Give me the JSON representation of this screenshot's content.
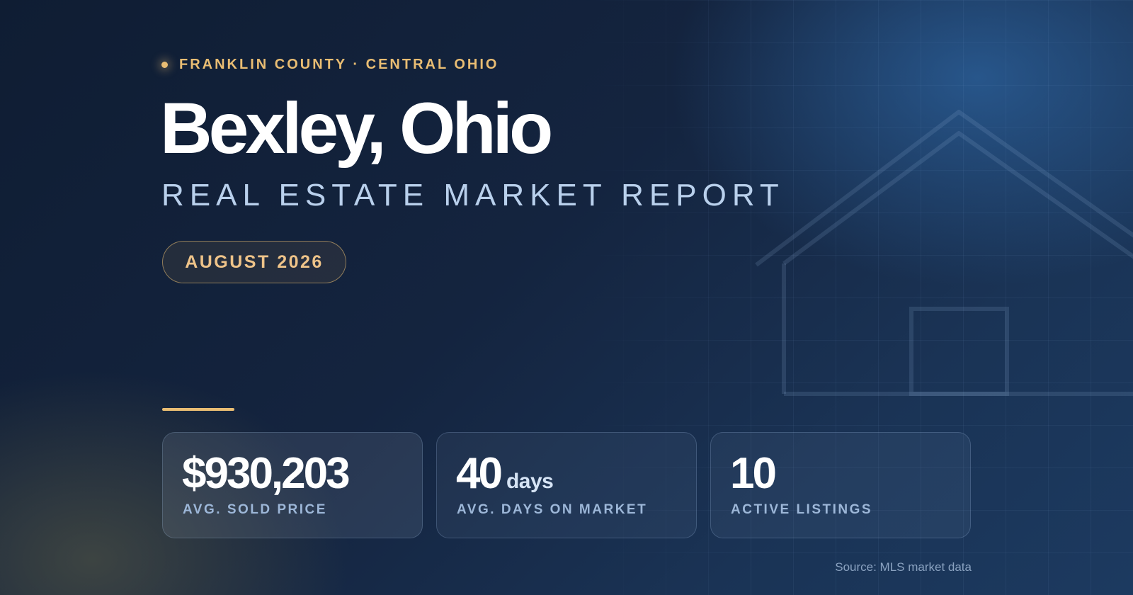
{
  "header": {
    "eyebrow": "FRANKLIN COUNTY · CENTRAL OHIO",
    "title": "Bexley, Ohio",
    "subtitle": "REAL ESTATE MARKET REPORT",
    "period_badge": "AUGUST 2026"
  },
  "stats": [
    {
      "value": "$930,203",
      "unit": "",
      "label": "AVG. SOLD PRICE"
    },
    {
      "value": "40",
      "unit": "days",
      "label": "AVG. DAYS ON MARKET"
    },
    {
      "value": "10",
      "unit": "",
      "label": "ACTIVE LISTINGS"
    }
  ],
  "footer": {
    "source": "Source: MLS market data"
  },
  "icons": {
    "house_outline": "house-icon",
    "bullet": "dot-icon"
  },
  "colors": {
    "background": "#13213a",
    "accent_gold": "#e9bd73",
    "subtitle_blue": "#b9d0ec",
    "title_white": "#ffffff",
    "label_blue": "#9db7d8"
  }
}
